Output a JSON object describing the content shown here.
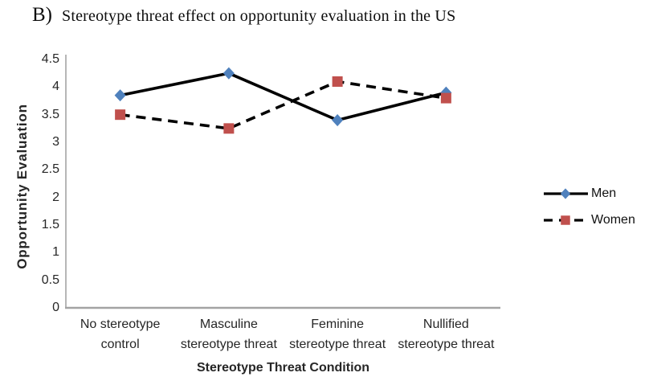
{
  "figure": {
    "title_prefix": "B)",
    "title": "Stereotype threat effect on opportunity evaluation in the US"
  },
  "chart_data": {
    "type": "line",
    "title": "B) Stereotype threat effect on opportunity evaluation in the US",
    "xlabel": "Stereotype Threat Condition",
    "ylabel": "Opportunity Evaluation",
    "categories": [
      "No stereotype control",
      "Masculine stereotype threat",
      "Feminine stereotype threat",
      "Nullified stereotype threat"
    ],
    "categories_lines": [
      [
        "No stereotype",
        "control"
      ],
      [
        "Masculine",
        "stereotype threat"
      ],
      [
        "Feminine",
        "stereotype threat"
      ],
      [
        "Nullified",
        "stereotype threat"
      ]
    ],
    "series": [
      {
        "name": "Men",
        "values": [
          3.85,
          4.25,
          3.4,
          3.9
        ],
        "marker": "diamond",
        "marker_color": "#4F81BD",
        "line_style": "solid"
      },
      {
        "name": "Women",
        "values": [
          3.5,
          3.25,
          4.1,
          3.8
        ],
        "marker": "square",
        "marker_color": "#C0504D",
        "line_style": "dashed"
      }
    ],
    "ylim": [
      0,
      4.5
    ],
    "ytick_step": 0.5,
    "ytick_labels": [
      "0",
      "0.5",
      "1",
      "1.5",
      "2",
      "2.5",
      "3",
      "3.5",
      "4",
      "4.5"
    ],
    "line_color": "#000000",
    "axis_color": "#a3a3a3",
    "grid": false,
    "legend_position": "right"
  }
}
